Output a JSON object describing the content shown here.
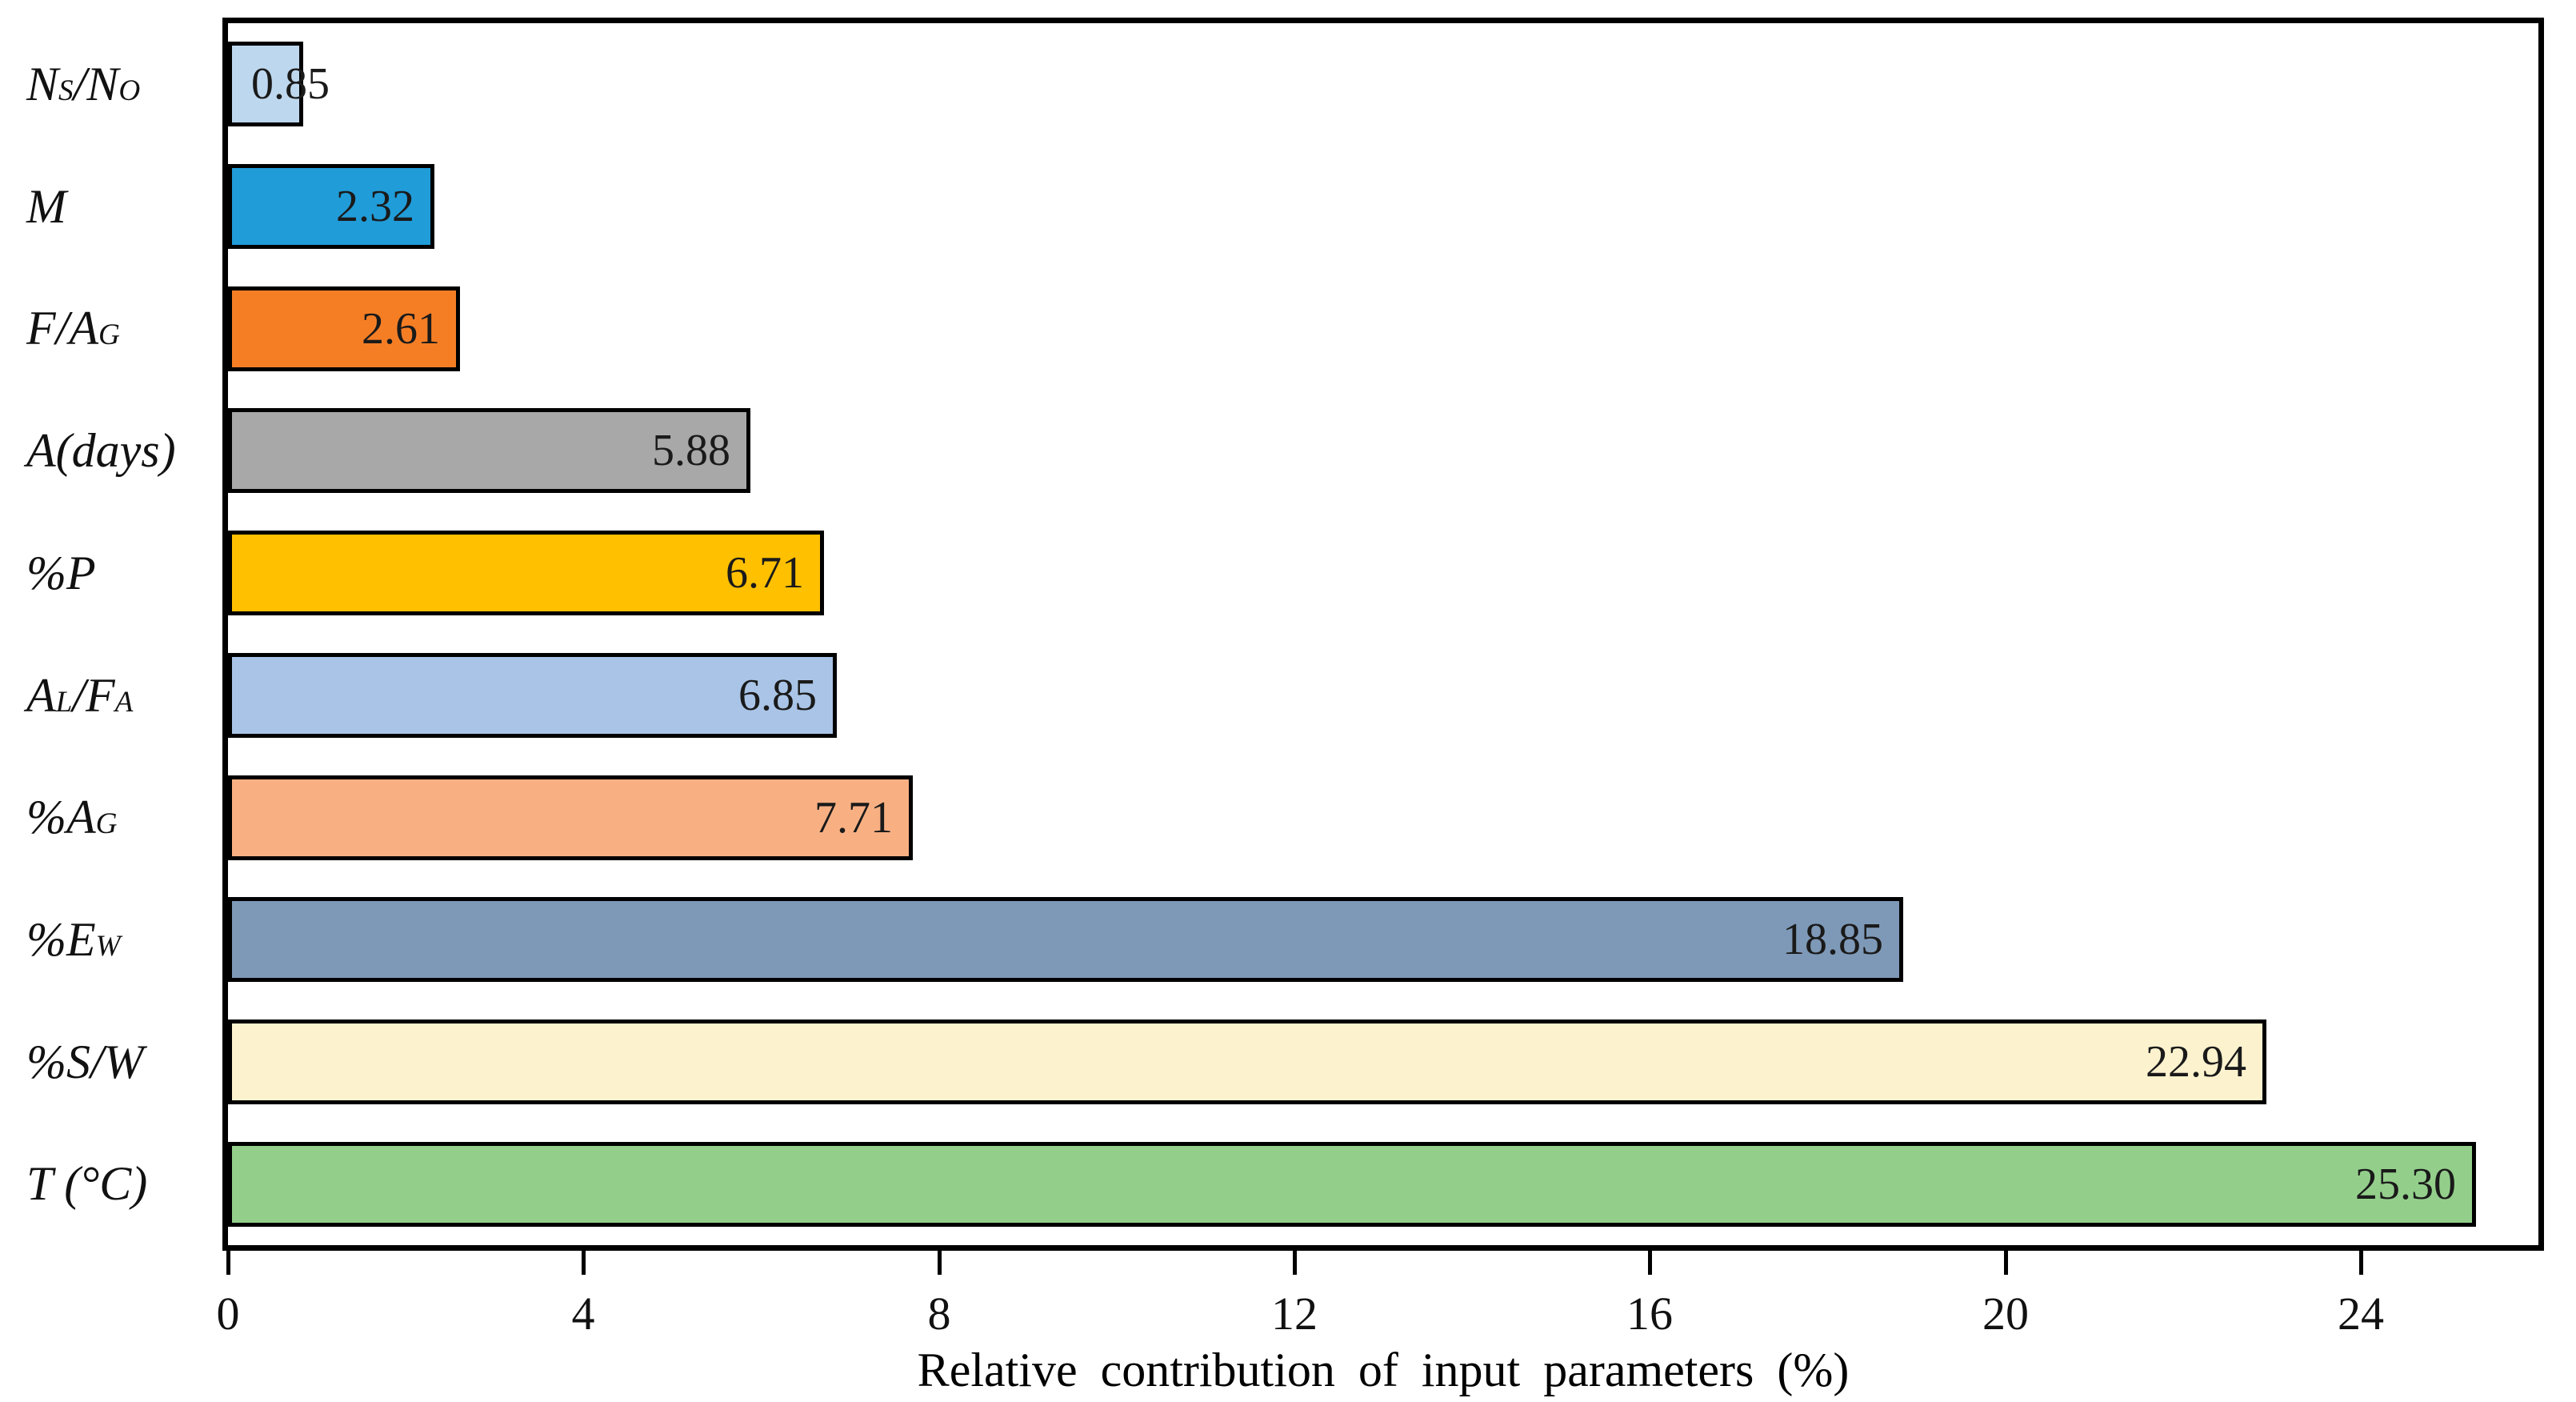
{
  "chart_data": {
    "type": "bar",
    "orientation": "horizontal",
    "title": "",
    "xlabel": "Relative contribution of input parameters (%)",
    "ylabel": "",
    "xlim": [
      0,
      26
    ],
    "xticks": [
      0,
      4,
      8,
      12,
      16,
      20,
      24
    ],
    "grid": false,
    "legend": "none",
    "categories": [
      "N_{S}/N_{O}",
      "M",
      "F/A_{G}",
      "A(days)",
      "%P",
      "A_{L}/F_{A}",
      "%A_{G}",
      "%E_{W}",
      "%S/W",
      "T (°C)"
    ],
    "values": [
      0.85,
      2.32,
      2.61,
      5.88,
      6.71,
      6.85,
      7.71,
      18.85,
      22.94,
      25.3
    ],
    "value_labels": [
      "0.85",
      "2.32",
      "2.61",
      "5.88",
      "6.71",
      "6.85",
      "7.71",
      "18.85",
      "22.94",
      "25.30"
    ],
    "bar_colors": [
      "#BDD7EE",
      "#209CD8",
      "#F57E25",
      "#A8A8A8",
      "#FFC000",
      "#A9C4E6",
      "#F8B083",
      "#7E99B7",
      "#FCF2CE",
      "#93CF8B"
    ],
    "bar_border_color": "#000000",
    "value_label_color": "#1a1a1a",
    "axis_color": "#000000",
    "plot_background": "#ffffff"
  }
}
